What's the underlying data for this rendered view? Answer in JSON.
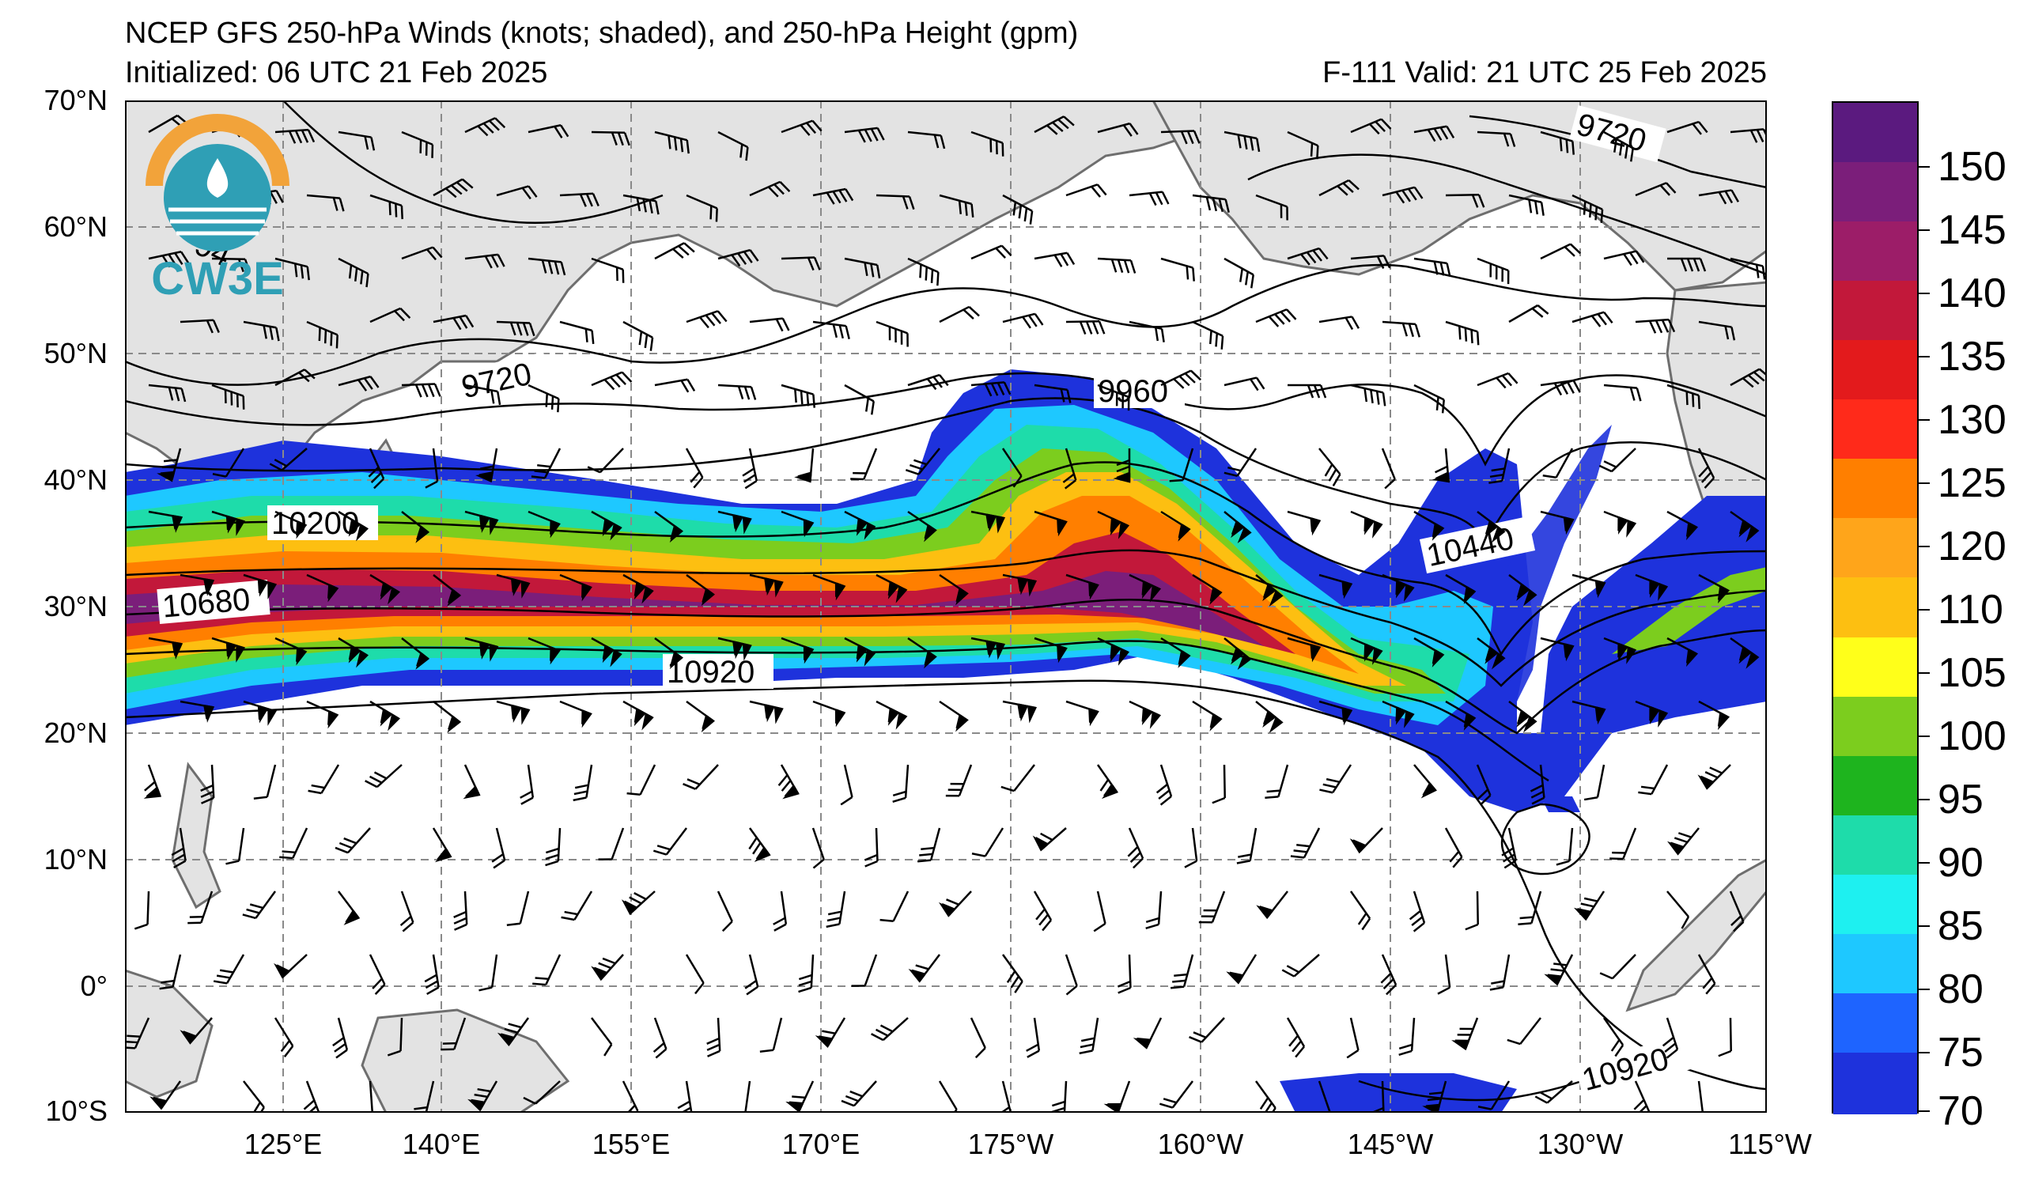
{
  "title_line1": "NCEP GFS 250-hPa Winds (knots; shaded), and 250-hPa Height (gpm)",
  "title_line2": "Initialized: 06 UTC 21 Feb 2025",
  "title_right": "F-111  Valid: 21 UTC 25 Feb 2025",
  "logo_text": "CW3E",
  "lat_labels": [
    "70°N",
    "60°N",
    "50°N",
    "40°N",
    "30°N",
    "20°N",
    "10°N",
    "0°",
    "10°S"
  ],
  "lon_labels": [
    "125°E",
    "140°E",
    "155°E",
    "170°E",
    "175°W",
    "160°W",
    "145°W",
    "130°W",
    "115°W"
  ],
  "colorbar": {
    "labels": [
      "150",
      "145",
      "140",
      "135",
      "130",
      "125",
      "120",
      "110",
      "105",
      "100",
      "95",
      "90",
      "85",
      "80",
      "75",
      "70"
    ],
    "colors": [
      "#5b1a7f",
      "#7b1e7a",
      "#9c1d68",
      "#c2183a",
      "#e31a1c",
      "#ff2a1a",
      "#ff7f00",
      "#ffa51a",
      "#fdbf11",
      "#ffff1a",
      "#7ccd1e",
      "#1eb41e",
      "#1edcaa",
      "#1ef0f0",
      "#1ec8ff",
      "#1e64ff",
      "#1e32dc"
    ]
  },
  "height_labels": [
    "9720",
    "9960",
    "10200",
    "10440",
    "10680",
    "10920",
    "9720",
    "10920",
    "94"
  ],
  "colors": {
    "land": "#e3e3e3",
    "coast": "#6e6e6e",
    "grid": "#8a8a8a",
    "logo_orange": "#f2a33a",
    "logo_teal": "#2f9fb5"
  }
}
